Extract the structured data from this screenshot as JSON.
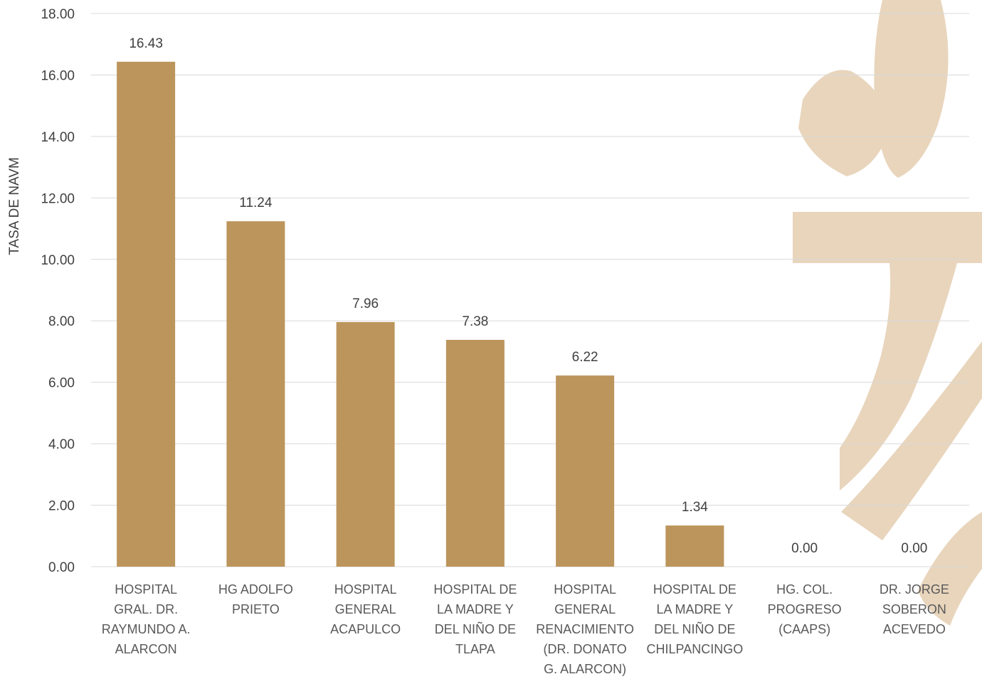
{
  "chart_data": {
    "type": "bar",
    "title": "",
    "xlabel": "",
    "ylabel": "TASA DE NAVM",
    "ylim": [
      0,
      18
    ],
    "ytick_step": 2,
    "ytick_labels": [
      "0.00",
      "2.00",
      "4.00",
      "6.00",
      "8.00",
      "10.00",
      "12.00",
      "14.00",
      "16.00",
      "18.00"
    ],
    "grid": true,
    "categories": [
      [
        "HOSPITAL",
        "GRAL. DR.",
        "RAYMUNDO A.",
        "ALARCON"
      ],
      [
        "HG ADOLFO",
        "PRIETO"
      ],
      [
        "HOSPITAL",
        "GENERAL",
        "ACAPULCO"
      ],
      [
        "HOSPITAL DE",
        "LA MADRE Y",
        "DEL NIÑO DE",
        "TLAPA"
      ],
      [
        "HOSPITAL",
        "GENERAL",
        "RENACIMIENTO",
        "(DR. DONATO",
        "G. ALARCON)"
      ],
      [
        "HOSPITAL DE",
        "LA MADRE Y",
        "DEL NIÑO DE",
        "CHILPANCINGO"
      ],
      [
        "HG. COL.",
        "PROGRESO",
        "(CAAPS)"
      ],
      [
        "DR. JORGE",
        "SOBERON",
        "ACEVEDO"
      ]
    ],
    "values": [
      16.43,
      11.24,
      7.96,
      7.38,
      6.22,
      1.34,
      0.0,
      0.0
    ],
    "value_labels": [
      "16.43",
      "11.24",
      "7.96",
      "7.38",
      "6.22",
      "1.34",
      "0.00",
      "0.00"
    ],
    "bar_color": "#BC955C",
    "grid_color": "#D9D9D9",
    "watermark_color": "#E8D5BC"
  }
}
